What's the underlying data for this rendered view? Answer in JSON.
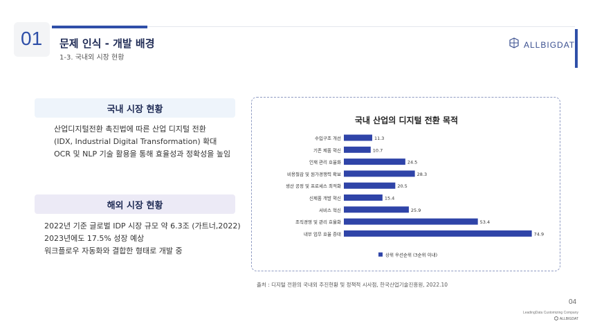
{
  "header": {
    "section_number": "01",
    "title": "문제 인식 - 개발 배경",
    "subtitle": "1-3. 국내외 시장 현황",
    "logo_text": "ALLBIGDAT",
    "accent_color": "#2f4fa8"
  },
  "domestic": {
    "heading": "국내 시장 현황",
    "lines": [
      "산업디지털전환 촉진법에 따른 산업 디지털 전환",
      "(IDX, Industrial Digital Transformation) 확대",
      "OCR 및 NLP 기술 활용을 통해 효율성과  정확성을 높임"
    ]
  },
  "overseas": {
    "heading": "해외 시장 현황",
    "lines": [
      "2022년 기준 글로벌 IDP 시장 규모 약 6.3조 (가트너,2022)",
      "2023년에도 17.5% 성장 예상",
      "워크플로우 자동화와 결합한 형태로 개발 중"
    ]
  },
  "chart_data": {
    "type": "bar",
    "orientation": "horizontal",
    "title": "국내 산업의 디지털 전환 목적",
    "categories": [
      "수입구조 개선",
      "기존 제품 혁신",
      "인재 관리 효율화",
      "비용절감 및 원가경쟁력 확보",
      "생산 공정 및 프로세스 최적화",
      "신제품 개발 혁신",
      "서비스 혁신",
      "조직경영 및 관리 효율화",
      "내부 업무 효율 증대"
    ],
    "values": [
      11.3,
      10.7,
      24.5,
      28.3,
      20.5,
      15.4,
      25.9,
      53.4,
      74.9
    ],
    "series_name": "상위 우선순위 (3순위 이내)",
    "bar_color": "#2f44a8",
    "xlim": [
      0,
      75
    ]
  },
  "source": "출처 : 디지털 전환의 국내외 추진현황 및 정책적 시사점, 한국산업기술진흥원, 2022.10",
  "footer": {
    "page_number": "04",
    "company_tagline": "LeadingData Customizing Company",
    "logo_text": "ALLBIGDAT"
  }
}
